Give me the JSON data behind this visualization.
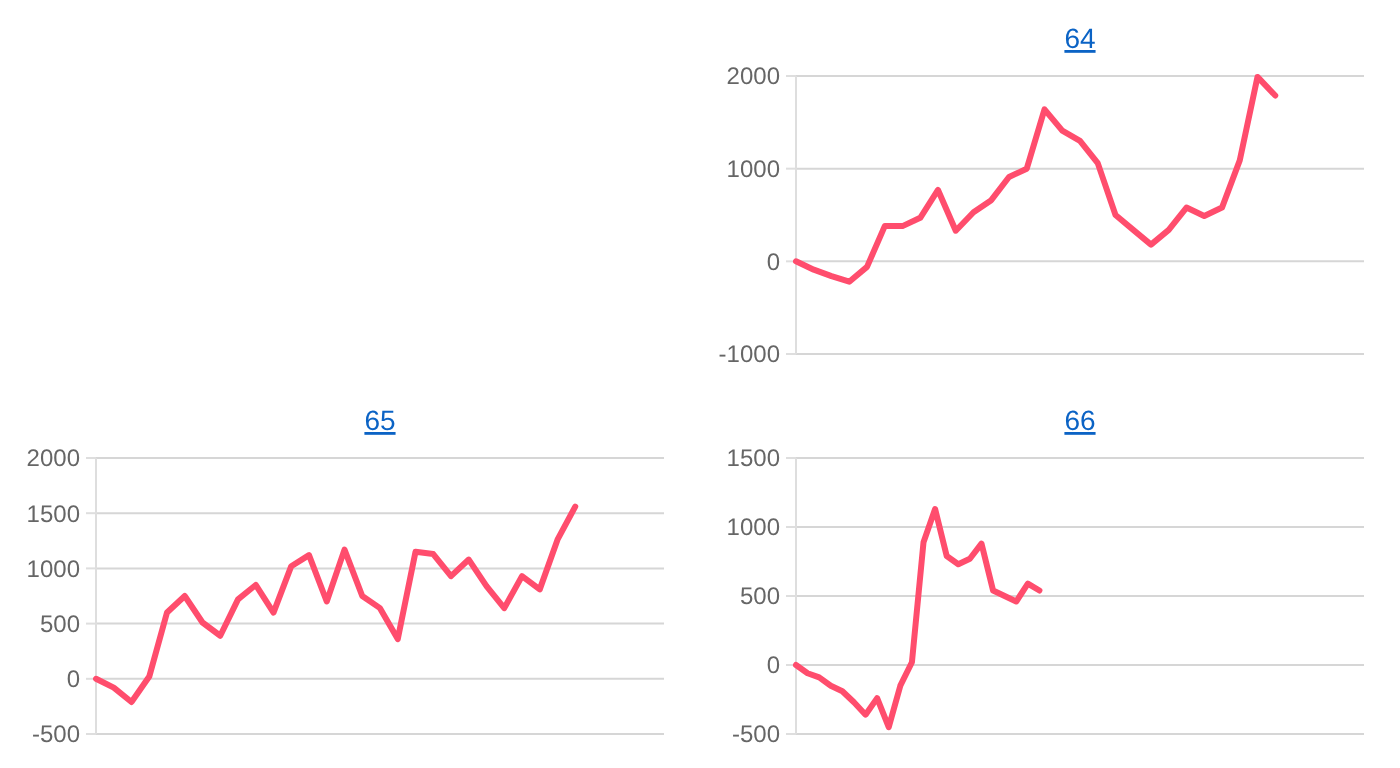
{
  "chart_data": [
    {
      "type": "line",
      "title": "64",
      "categories": [
        null,
        null,
        null,
        null,
        null,
        null,
        null,
        null,
        null,
        null,
        null,
        null,
        null,
        null,
        null,
        null,
        null,
        null,
        null,
        null,
        null,
        null,
        null,
        null,
        null,
        null,
        null,
        null,
        null,
        null,
        null,
        null,
        null
      ],
      "series": [
        {
          "color": "#ff4d6d",
          "values": [
            0,
            -90,
            -160,
            -220,
            -60,
            380,
            380,
            470,
            770,
            330,
            530,
            660,
            910,
            1000,
            1640,
            1410,
            1300,
            1060,
            500,
            340,
            180,
            340,
            580,
            490,
            580,
            1090,
            1990,
            1790,
            null,
            null,
            null,
            null,
            null
          ]
        }
      ],
      "ylim": [
        -1000,
        2000
      ],
      "yticks": [
        -1000,
        0,
        1000,
        2000
      ],
      "grid": "y",
      "marker": "none",
      "line_style": "solid"
    },
    {
      "type": "line",
      "title": "65",
      "categories": [
        null,
        null,
        null,
        null,
        null,
        null,
        null,
        null,
        null,
        null,
        null,
        null,
        null,
        null,
        null,
        null,
        null,
        null,
        null,
        null,
        null,
        null,
        null,
        null,
        null,
        null,
        null,
        null,
        null,
        null,
        null,
        null,
        null
      ],
      "series": [
        {
          "color": "#ff4d6d",
          "values": [
            0,
            -80,
            -210,
            20,
            600,
            750,
            510,
            390,
            720,
            850,
            600,
            1020,
            1120,
            700,
            1170,
            750,
            640,
            360,
            1150,
            1130,
            930,
            1080,
            840,
            640,
            930,
            810,
            1260,
            1560,
            null,
            null,
            null,
            null,
            null
          ]
        }
      ],
      "ylim": [
        -500,
        2000
      ],
      "yticks": [
        -500,
        0,
        500,
        1000,
        1500,
        2000
      ],
      "grid": "y",
      "marker": "none",
      "line_style": "solid"
    },
    {
      "type": "line",
      "title": "66",
      "categories": [
        null,
        null,
        null,
        null,
        null,
        null,
        null,
        null,
        null,
        null,
        null,
        null,
        null,
        null,
        null,
        null,
        null,
        null,
        null,
        null,
        null,
        null,
        null,
        null,
        null,
        null,
        null,
        null,
        null,
        null,
        null,
        null,
        null,
        null,
        null,
        null,
        null,
        null,
        null,
        null,
        null,
        null,
        null,
        null,
        null,
        null,
        null,
        null,
        null,
        null
      ],
      "series": [
        {
          "color": "#ff4d6d",
          "values": [
            0,
            -60,
            -90,
            -150,
            -190,
            -270,
            -360,
            -240,
            -450,
            -150,
            20,
            890,
            1130,
            790,
            730,
            770,
            880,
            540,
            500,
            460,
            590,
            540,
            null,
            null,
            null,
            null,
            null,
            null,
            null,
            null,
            null,
            null,
            null,
            null,
            null,
            null,
            null,
            null,
            null,
            null,
            null,
            null,
            null,
            null,
            null,
            null,
            null,
            null,
            null,
            null
          ]
        }
      ],
      "ylim": [
        -500,
        1500
      ],
      "yticks": [
        -500,
        0,
        500,
        1000,
        1500
      ],
      "grid": "y",
      "marker": "none",
      "line_style": "solid"
    }
  ]
}
